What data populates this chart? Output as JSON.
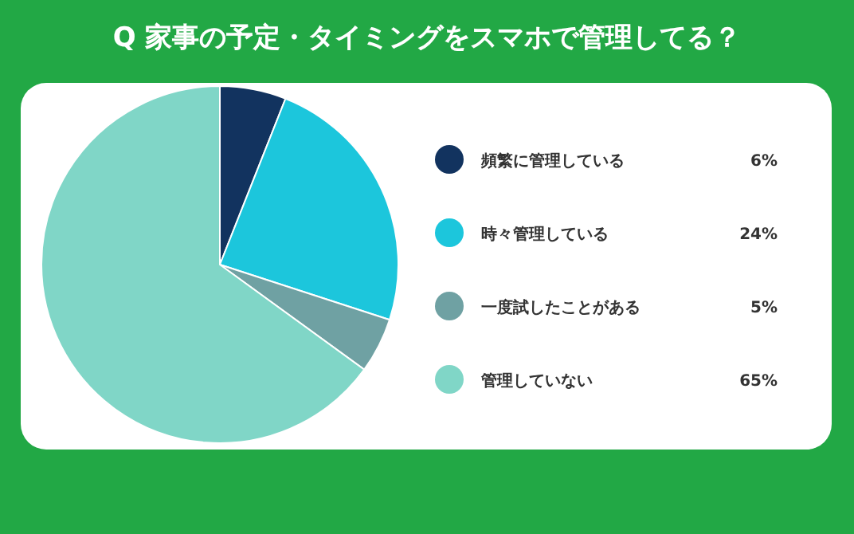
{
  "chart_data": {
    "type": "pie",
    "title": "Q 家事の予定・タイミングをスマホで管理してる？",
    "categories": [
      "頻繁に管理している",
      "時々管理している",
      "一度試したことがある",
      "管理していない"
    ],
    "values": [
      6,
      24,
      5,
      65
    ],
    "colors": [
      "#12335f",
      "#1cc6dc",
      "#6fa1a3",
      "#80d6c7"
    ],
    "value_labels": [
      "6%",
      "24%",
      "5%",
      "65%"
    ],
    "legend": "right"
  }
}
